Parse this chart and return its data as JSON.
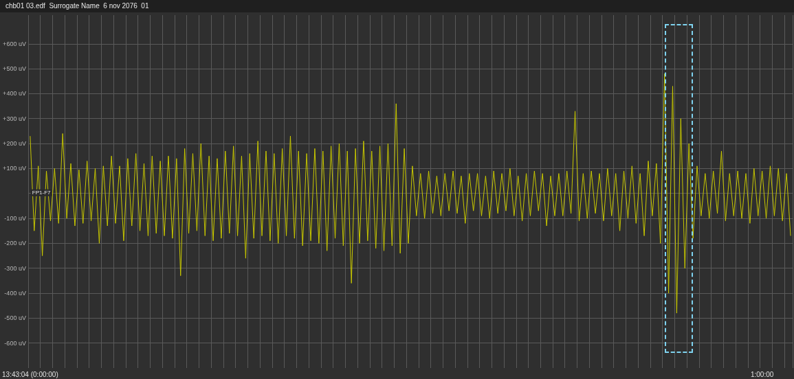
{
  "chart_data": {
    "type": "line",
    "title": "chb01 03.edf  Surrogate Name  6 nov 2076  01",
    "categories": [
      "13:43:04 (0:00:00)",
      null,
      null,
      null,
      null,
      null,
      null,
      null,
      null,
      null,
      null,
      null,
      null,
      null,
      null,
      null,
      null,
      null,
      null,
      null,
      null,
      null,
      null,
      null,
      null,
      null,
      null,
      null,
      null,
      null,
      null,
      null,
      null,
      null,
      null,
      null,
      null,
      null,
      null,
      null,
      null,
      null,
      null,
      null,
      null,
      null,
      null,
      null,
      null,
      null,
      null,
      null,
      null,
      null,
      null,
      null,
      null,
      null,
      null,
      null,
      null,
      null,
      null,
      null,
      null,
      null,
      null,
      null,
      null,
      null,
      null,
      null,
      null,
      null,
      null,
      null,
      null,
      null,
      null,
      null,
      null,
      null,
      null,
      null,
      null,
      null,
      null,
      null,
      null,
      null,
      null,
      null,
      null,
      null,
      null,
      null,
      null,
      null,
      null,
      null,
      null,
      null,
      null,
      null,
      null,
      null,
      null,
      null,
      null,
      null,
      null,
      null,
      null,
      null,
      null,
      null,
      null,
      null,
      null,
      null,
      null,
      null,
      null,
      null,
      null,
      null,
      null,
      null,
      null,
      null,
      null,
      null,
      null,
      null,
      null,
      null,
      null,
      null,
      null,
      null,
      null,
      null,
      null,
      null,
      null,
      null,
      null,
      null,
      null,
      null,
      null,
      null,
      null,
      null,
      null,
      null,
      null,
      null,
      null,
      null,
      null,
      null,
      null,
      null,
      null,
      null,
      null,
      null,
      null,
      null,
      null,
      null,
      null,
      null,
      null,
      null,
      null,
      null,
      null,
      null,
      "1:00:00",
      null,
      null,
      null,
      null,
      null,
      null,
      null
    ],
    "series": [
      {
        "name": "FP1-F7",
        "color": "#c8c800",
        "values": [
          230,
          -150,
          110,
          -250,
          90,
          -110,
          100,
          -120,
          240,
          -100,
          120,
          -130,
          95,
          -120,
          130,
          -110,
          100,
          -200,
          110,
          -130,
          150,
          -120,
          110,
          -190,
          140,
          -130,
          160,
          -150,
          120,
          -170,
          150,
          -160,
          130,
          -170,
          150,
          -180,
          140,
          -330,
          180,
          -160,
          160,
          -150,
          200,
          -170,
          150,
          -190,
          140,
          -180,
          170,
          -160,
          190,
          -170,
          150,
          -260,
          160,
          -180,
          210,
          -170,
          170,
          -190,
          160,
          -200,
          180,
          -170,
          230,
          -180,
          170,
          -210,
          160,
          -190,
          180,
          -200,
          170,
          -230,
          190,
          -180,
          200,
          -210,
          170,
          -360,
          180,
          -200,
          210,
          -190,
          170,
          -220,
          190,
          -230,
          200,
          -210,
          360,
          -240,
          180,
          -200,
          110,
          -90,
          80,
          -100,
          90,
          -80,
          70,
          -90,
          80,
          -70,
          90,
          -80,
          70,
          -120,
          80,
          -70,
          80,
          -90,
          70,
          -100,
          90,
          -80,
          80,
          -70,
          100,
          -90,
          70,
          -110,
          80,
          -90,
          90,
          -70,
          80,
          -130,
          70,
          -90,
          80,
          -90,
          90,
          -80,
          330,
          -110,
          80,
          -100,
          90,
          -80,
          80,
          -110,
          100,
          -90,
          80,
          -150,
          90,
          -100,
          110,
          -120,
          80,
          -170,
          130,
          -90,
          120,
          -200,
          480,
          -400,
          430,
          -480,
          300,
          -300,
          200,
          -180,
          110,
          -90,
          80,
          -100,
          90,
          -80,
          170,
          -110,
          80,
          -90,
          90,
          -100,
          80,
          -120,
          100,
          -90,
          90,
          -100,
          110,
          -90,
          100,
          -110,
          80,
          -170
        ]
      }
    ],
    "ylim": [
      -700,
      715
    ],
    "yticks": [
      {
        "value": -600,
        "label": "-600 uV"
      },
      {
        "value": -500,
        "label": "-500 uV"
      },
      {
        "value": -400,
        "label": "-400 uV"
      },
      {
        "value": -300,
        "label": "-300 uV"
      },
      {
        "value": -200,
        "label": "-200 uV"
      },
      {
        "value": -100,
        "label": "-100 uV"
      },
      {
        "value": 0,
        "label": null
      },
      {
        "value": 100,
        "label": "+100 uV"
      },
      {
        "value": 200,
        "label": "+200 uV"
      },
      {
        "value": 300,
        "label": "+300 uV"
      },
      {
        "value": 400,
        "label": "+400 uV"
      },
      {
        "value": 500,
        "label": "+500 uV"
      },
      {
        "value": 600,
        "label": "+600 uV"
      }
    ],
    "grid": true,
    "legend": false,
    "marker": "none",
    "line_style": "solid"
  }
}
